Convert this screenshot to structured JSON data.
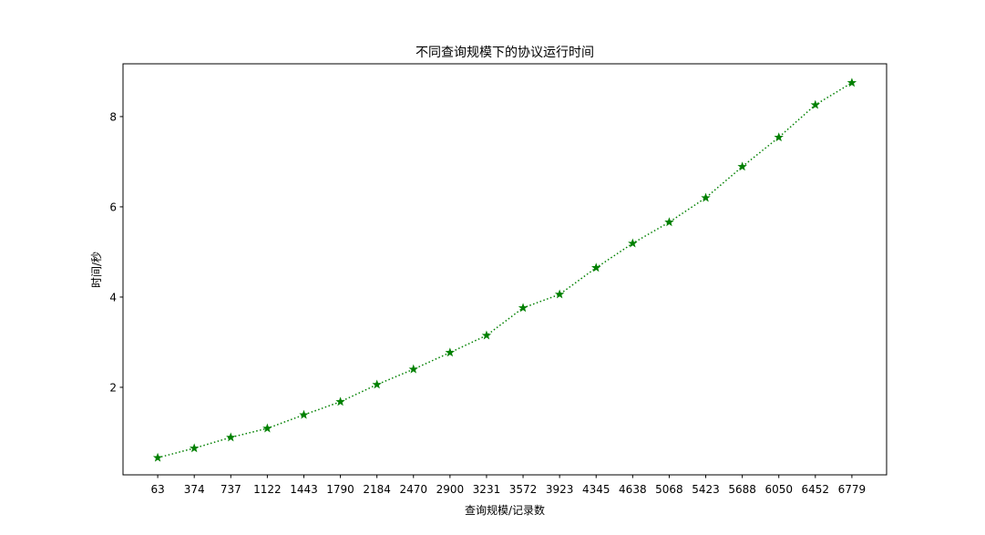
{
  "chart_data": {
    "type": "line",
    "title": "不同查询规模下的协议运行时间",
    "xlabel": "查询规模/记录数",
    "ylabel": "时间/秒",
    "categories": [
      63,
      374,
      737,
      1122,
      1443,
      1790,
      2184,
      2470,
      2900,
      3231,
      3572,
      3923,
      4345,
      4638,
      5068,
      5423,
      5688,
      6050,
      6452,
      6779
    ],
    "series": [
      {
        "values": [
          0.44,
          0.65,
          0.89,
          1.09,
          1.39,
          1.68,
          2.06,
          2.4,
          2.77,
          3.15,
          3.76,
          4.06,
          4.65,
          5.19,
          5.66,
          6.2,
          6.89,
          7.54,
          8.26,
          8.75
        ],
        "color": "#008000",
        "line_style": "dotted",
        "marker": "star"
      }
    ],
    "yticks": [
      2,
      4,
      6,
      8
    ],
    "ylim": [
      0.06,
      9.17
    ],
    "grid": false,
    "legend": "none"
  }
}
